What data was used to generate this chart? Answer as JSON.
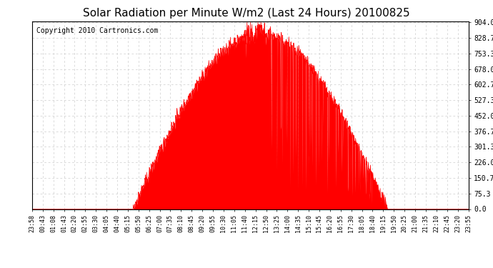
{
  "title": "Solar Radiation per Minute W/m2 (Last 24 Hours) 20100825",
  "copyright": "Copyright 2010 Cartronics.com",
  "bg_color": "#ffffff",
  "plot_bg_color": "#ffffff",
  "fill_color": "#ff0000",
  "line_color": "#ff0000",
  "grid_color": "#cccccc",
  "ymin": 0.0,
  "ymax": 904.0,
  "yticks": [
    0.0,
    75.3,
    150.7,
    226.0,
    301.3,
    376.7,
    452.0,
    527.3,
    602.7,
    678.0,
    753.3,
    828.7,
    904.0
  ],
  "x_labels": [
    "23:58",
    "00:43",
    "01:08",
    "01:43",
    "02:20",
    "02:55",
    "03:30",
    "04:05",
    "04:40",
    "05:15",
    "05:50",
    "06:25",
    "07:00",
    "07:35",
    "08:10",
    "08:45",
    "09:20",
    "09:55",
    "10:30",
    "11:05",
    "11:40",
    "12:15",
    "12:50",
    "13:25",
    "14:00",
    "14:35",
    "15:10",
    "15:45",
    "16:20",
    "16:55",
    "17:30",
    "18:05",
    "18:40",
    "19:15",
    "19:50",
    "20:25",
    "21:00",
    "21:35",
    "22:10",
    "22:45",
    "23:20",
    "23:55"
  ]
}
